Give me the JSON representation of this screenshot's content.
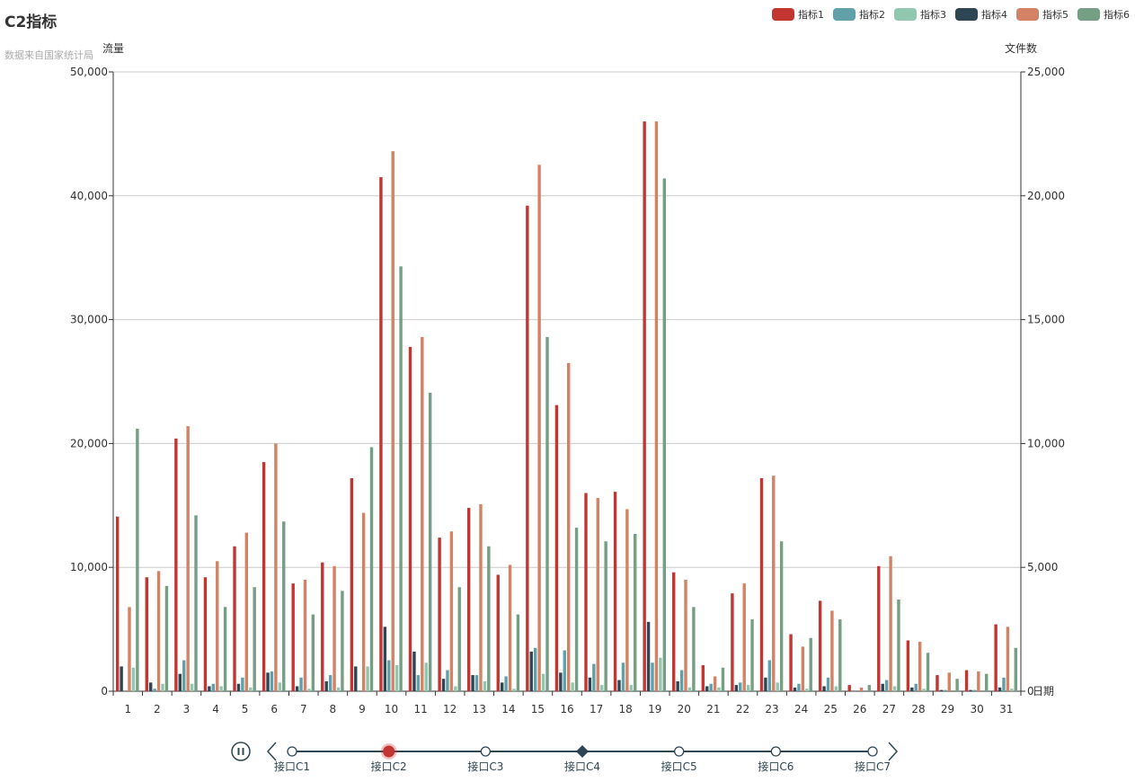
{
  "title": "C2指标",
  "subtitle": "数据来自国家统计局",
  "legend": [
    {
      "name": "指标1",
      "color": "#c23531"
    },
    {
      "name": "指标2",
      "color": "#61a0a8"
    },
    {
      "name": "指标3",
      "color": "#91c7ae"
    },
    {
      "name": "指标4",
      "color": "#2f4554"
    },
    {
      "name": "指标5",
      "color": "#d48265"
    },
    {
      "name": "指标6",
      "color": "#749f83"
    }
  ],
  "timeline": {
    "items": [
      "接口C1",
      "接口C2",
      "接口C3",
      "接口C4",
      "接口C5",
      "接口C6",
      "接口C7"
    ],
    "current_index": 1,
    "play_icon": "pause-icon",
    "prev_icon": "chevron-left-icon",
    "next_icon": "chevron-right-icon"
  },
  "chart_data": {
    "type": "bar",
    "categories": [
      "1",
      "2",
      "3",
      "4",
      "5",
      "6",
      "7",
      "8",
      "9",
      "10",
      "11",
      "12",
      "13",
      "14",
      "15",
      "16",
      "17",
      "18",
      "19",
      "20",
      "21",
      "22",
      "23",
      "24",
      "25",
      "26",
      "27",
      "28",
      "29",
      "30",
      "31"
    ],
    "xlabel": "日期",
    "y_left": {
      "label": "流量",
      "min": 0,
      "max": 50000,
      "ticks": [
        "0",
        "10,000",
        "20,000",
        "30,000",
        "40,000",
        "50,000"
      ]
    },
    "y_right": {
      "label": "文件数",
      "min": 0,
      "max": 25000,
      "ticks": [
        "0",
        "5,000",
        "10,000",
        "15,000",
        "20,000",
        "25,000"
      ]
    },
    "grid": true,
    "series": [
      {
        "name": "指标1",
        "axis": "left",
        "color": "#c23531",
        "values": [
          14100,
          9200,
          20400,
          9200,
          11700,
          18500,
          8700,
          10400,
          17200,
          41500,
          27800,
          12400,
          14800,
          9400,
          39200,
          23100,
          16000,
          16100,
          46000,
          9600,
          2100,
          7900,
          17200,
          4600,
          7300,
          500,
          10100,
          4100,
          1300,
          1700,
          5400
        ]
      },
      {
        "name": "指标4",
        "axis": "left",
        "color": "#2f4554",
        "values": [
          2000,
          700,
          1400,
          400,
          600,
          1500,
          400,
          800,
          2000,
          5200,
          3200,
          1000,
          1300,
          700,
          3200,
          1500,
          1100,
          900,
          5600,
          800,
          400,
          500,
          1100,
          300,
          400,
          0,
          600,
          300,
          100,
          100,
          300
        ]
      },
      {
        "name": "指标2",
        "axis": "left",
        "color": "#61a0a8",
        "values": [
          0,
          200,
          2500,
          600,
          1100,
          1600,
          1100,
          1300,
          0,
          2500,
          1300,
          1700,
          1300,
          1200,
          3500,
          3300,
          2200,
          2300,
          2300,
          1700,
          600,
          700,
          2500,
          600,
          1100,
          0,
          900,
          600,
          100,
          100,
          1100
        ]
      },
      {
        "name": "指标5",
        "axis": "right",
        "color": "#d48265",
        "values": [
          3400,
          4850,
          10700,
          5250,
          6400,
          10000,
          4500,
          5050,
          7200,
          21800,
          14300,
          6450,
          7550,
          5100,
          21250,
          13250,
          7800,
          7350,
          23000,
          4500,
          600,
          4350,
          8700,
          1800,
          3250,
          150,
          5450,
          2000,
          750,
          800,
          2600
        ]
      },
      {
        "name": "指标3",
        "axis": "right",
        "color": "#91c7ae",
        "values": [
          950,
          300,
          300,
          200,
          150,
          350,
          100,
          150,
          1000,
          1050,
          1150,
          200,
          400,
          100,
          700,
          350,
          250,
          250,
          1350,
          150,
          150,
          250,
          350,
          100,
          200,
          0,
          200,
          100,
          0,
          0,
          100
        ]
      },
      {
        "name": "指标6",
        "axis": "right",
        "color": "#749f83",
        "values": [
          10600,
          4250,
          7100,
          3400,
          4200,
          6850,
          3100,
          4050,
          9850,
          17150,
          12050,
          4200,
          5850,
          3100,
          14300,
          6600,
          6050,
          6350,
          20700,
          3400,
          950,
          2900,
          6050,
          2150,
          2900,
          250,
          3700,
          1550,
          500,
          700,
          1750
        ]
      }
    ]
  }
}
